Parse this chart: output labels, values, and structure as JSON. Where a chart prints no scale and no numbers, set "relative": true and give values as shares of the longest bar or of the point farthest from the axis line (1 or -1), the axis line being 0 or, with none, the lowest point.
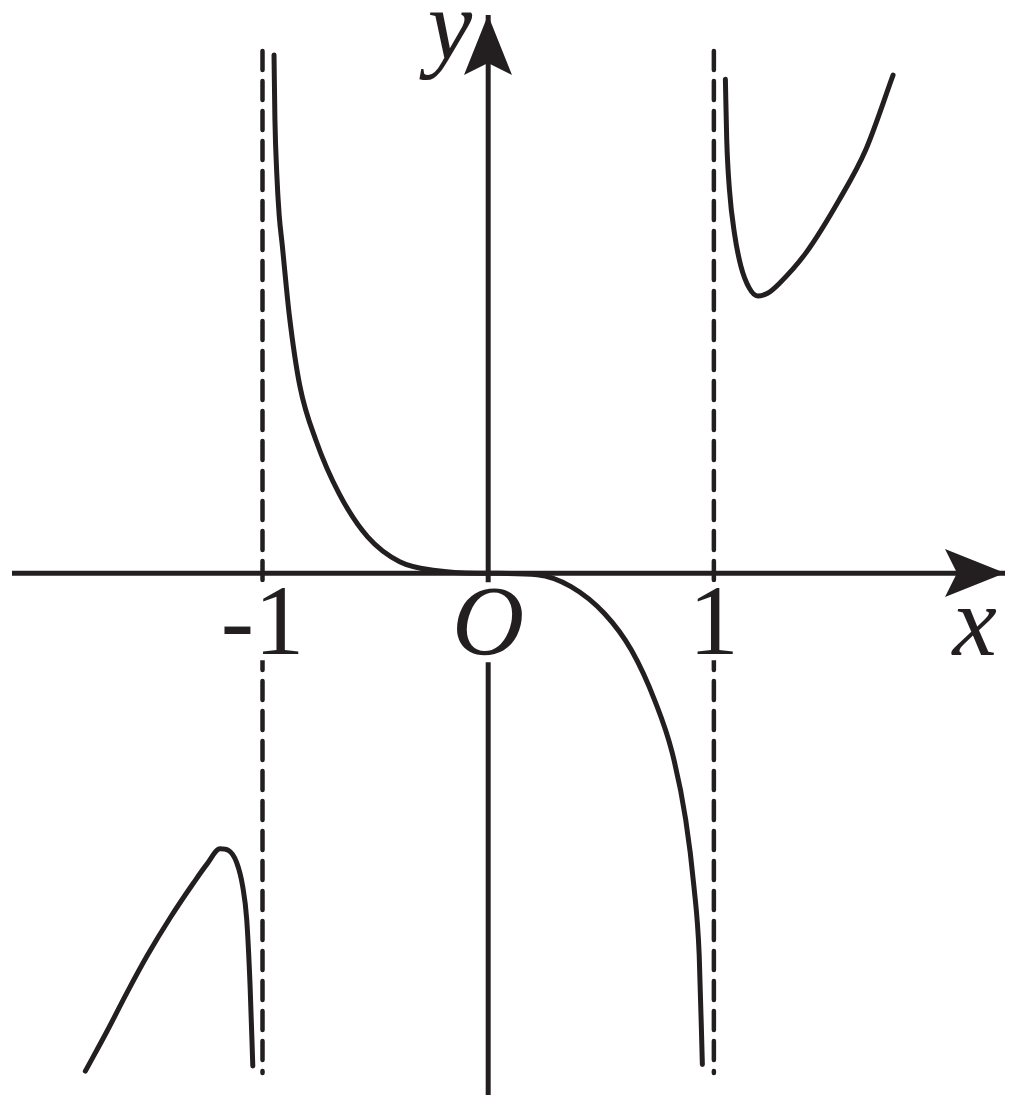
{
  "chart_data": {
    "type": "line",
    "xlabel": "x",
    "ylabel": "y",
    "relative": true,
    "xlim": [
      -2.11,
      2.29
    ],
    "xticks": [
      -1,
      {
        "value": 0,
        "label": "O"
      },
      1
    ],
    "series": [
      {
        "color": "#231f20",
        "x": [
          -0.949,
          -0.945,
          -0.937,
          -0.926,
          -0.913,
          -0.881,
          -0.834,
          -0.763,
          -0.66,
          -0.534,
          -0.392,
          -0.234,
          -0.044,
          0
        ],
        "values": [
          1,
          0.876,
          0.773,
          0.69,
          0.635,
          0.497,
          0.36,
          0.256,
          0.153,
          0.07,
          0.022,
          0.005,
          0,
          0
        ]
      },
      {
        "color": "#231f20",
        "x": [
          -1.785,
          -1.689,
          -1.601,
          -1.512,
          -1.409,
          -1.306,
          -1.247,
          -1.188,
          -1.151,
          -1.114,
          -1.088,
          -1.07,
          -1.055,
          -1.043
        ],
        "values": [
          -0.961,
          -0.884,
          -0.81,
          -0.739,
          -0.665,
          -0.598,
          -0.562,
          -0.532,
          -0.535,
          -0.559,
          -0.604,
          -0.668,
          -0.797,
          -0.951
        ]
      },
      {
        "color": "#231f20",
        "x": [
          0,
          0.217,
          0.367,
          0.515,
          0.635,
          0.74,
          0.815,
          0.875,
          0.912,
          0.935,
          0.949
        ],
        "values": [
          0,
          -0.003,
          -0.026,
          -0.078,
          -0.149,
          -0.248,
          -0.346,
          -0.475,
          -0.606,
          -0.737,
          -0.948
        ]
      },
      {
        "color": "#231f20",
        "x": [
          1.051,
          1.057,
          1.069,
          1.091,
          1.12,
          1.157,
          1.194,
          1.238,
          1.29,
          1.408,
          1.555,
          1.673,
          1.794
        ],
        "values": [
          0.953,
          0.836,
          0.74,
          0.656,
          0.592,
          0.55,
          0.535,
          0.54,
          0.559,
          0.618,
          0.72,
          0.817,
          0.961
        ]
      }
    ],
    "ref_lines": [
      {
        "axis": "x",
        "value": -1,
        "color": "#231f20",
        "line_style": "dashed"
      },
      {
        "axis": "x",
        "value": 1,
        "color": "#231f20",
        "line_style": "dashed"
      }
    ]
  }
}
